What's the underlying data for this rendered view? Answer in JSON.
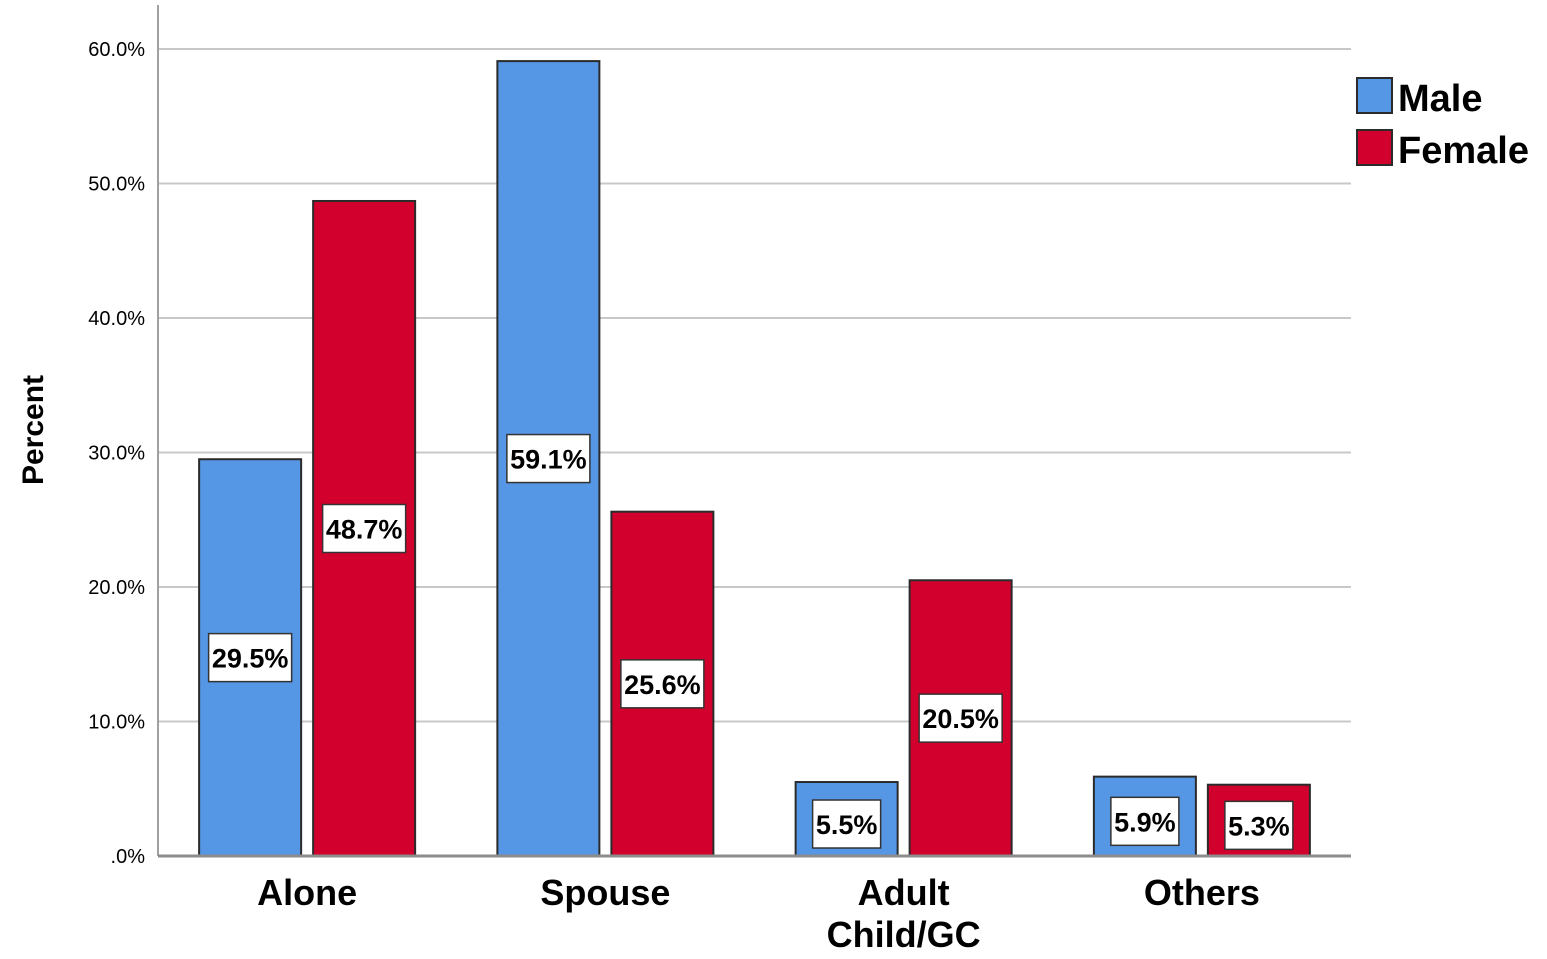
{
  "chart_data": {
    "type": "bar",
    "ylabel": "Percent",
    "xlabel": "",
    "categories": [
      [
        "Alone"
      ],
      [
        "Spouse"
      ],
      [
        "Adult",
        "Child/GC"
      ],
      [
        "Others"
      ]
    ],
    "series": [
      {
        "name": "Male",
        "color": "#5597e5",
        "values": [
          29.5,
          59.1,
          5.5,
          5.9
        ],
        "labels": [
          "29.5%",
          "59.1%",
          "5.5%",
          "5.9%"
        ]
      },
      {
        "name": "Female",
        "color": "#d2002c",
        "values": [
          48.7,
          25.6,
          20.5,
          5.3
        ],
        "labels": [
          "48.7%",
          "25.6%",
          "20.5%",
          "5.3%"
        ]
      }
    ],
    "ylim": [
      0,
      63
    ],
    "yticks": [
      {
        "value": 0,
        "label": ".0%"
      },
      {
        "value": 10,
        "label": "10.0%"
      },
      {
        "value": 20,
        "label": "20.0%"
      },
      {
        "value": 30,
        "label": "30.0%"
      },
      {
        "value": 40,
        "label": "40.0%"
      },
      {
        "value": 50,
        "label": "50.0%"
      },
      {
        "value": 60,
        "label": "60.0%"
      }
    ],
    "grid": true,
    "legend_position": "top-right"
  }
}
